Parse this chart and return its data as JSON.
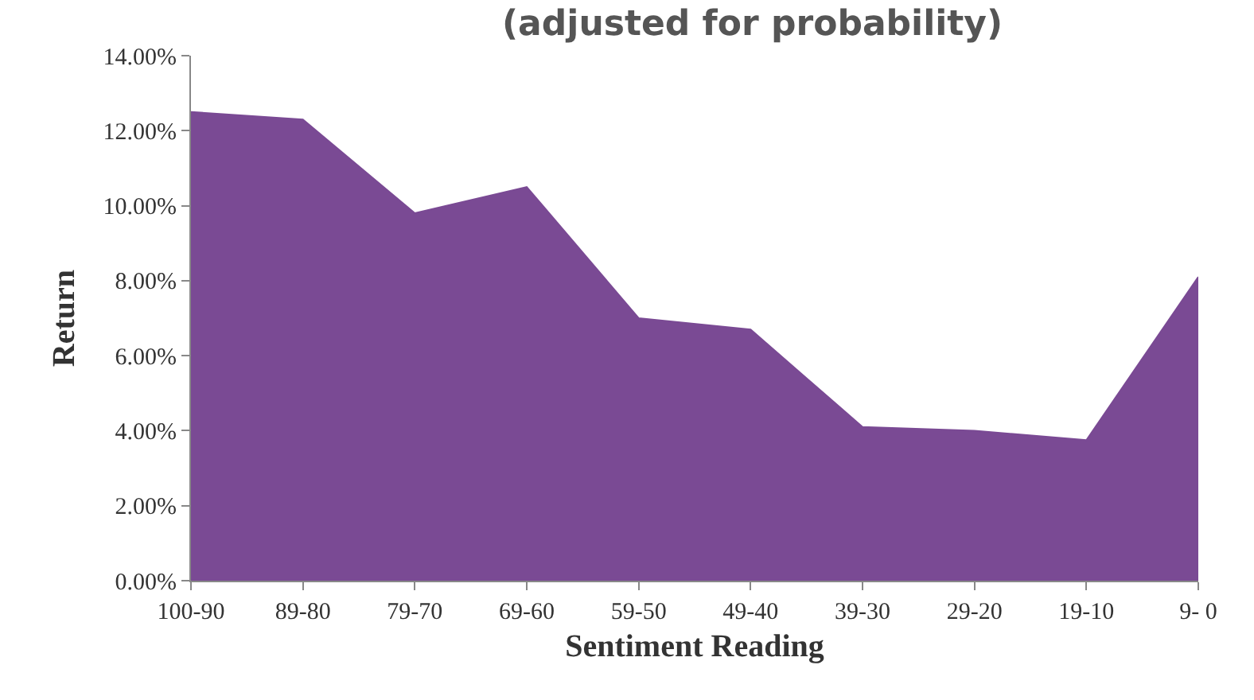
{
  "chart_data": {
    "type": "area",
    "title": "(adjusted for probability)",
    "xlabel": "Sentiment Reading",
    "ylabel": "Return",
    "categories": [
      "100-90",
      "89-80",
      "79-70",
      "69-60",
      "59-50",
      "49-40",
      "39-30",
      "29-20",
      "19-10",
      "9- 0"
    ],
    "values": [
      12.5,
      12.3,
      9.8,
      10.5,
      7.0,
      6.7,
      4.1,
      4.0,
      3.75,
      8.1
    ],
    "color": "#7a4a94",
    "ylim": [
      0,
      14
    ],
    "yticks": [
      {
        "value": 0,
        "label": "0.00%"
      },
      {
        "value": 2,
        "label": "2.00%"
      },
      {
        "value": 4,
        "label": "4.00%"
      },
      {
        "value": 6,
        "label": "6.00%"
      },
      {
        "value": 8,
        "label": "8.00%"
      },
      {
        "value": 10,
        "label": "10.00%"
      },
      {
        "value": 12,
        "label": "12.00%"
      },
      {
        "value": 14,
        "label": "14.00%"
      }
    ],
    "grid": false
  }
}
